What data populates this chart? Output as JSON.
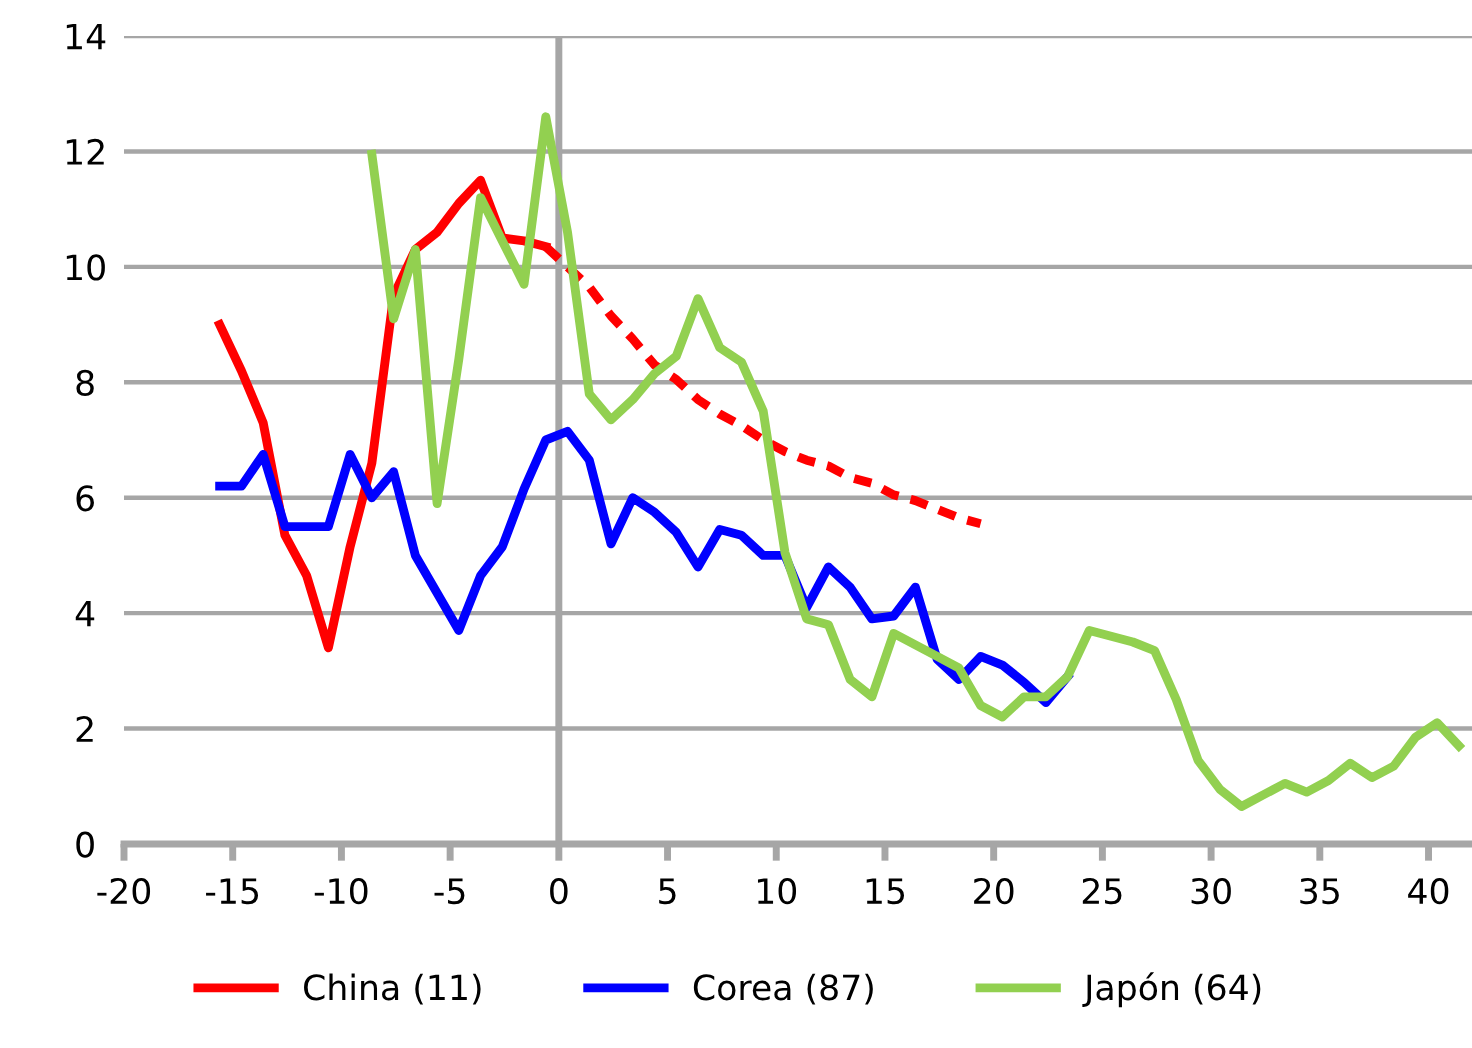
{
  "chart_data": {
    "type": "line",
    "xlim": [
      -20,
      42
    ],
    "ylim": [
      0,
      14
    ],
    "xticks": [
      -20,
      -15,
      -10,
      -5,
      0,
      5,
      10,
      15,
      20,
      25,
      30,
      35,
      40
    ],
    "yticks": [
      0,
      2,
      4,
      6,
      8,
      10,
      12,
      14
    ],
    "grid": "y",
    "legend": "bottom",
    "line_style": "solid",
    "marker": "none",
    "ref_lines": [
      {
        "axis": "x",
        "value": 0,
        "color": "#a6a6a6"
      }
    ],
    "series": [
      {
        "name": "China (11)",
        "color": "#ff0000",
        "x": [
          -15.6,
          -14.6,
          -13.6,
          -12.6,
          -11.6,
          -10.6,
          -9.6,
          -8.6,
          -7.6,
          -6.6,
          -5.6,
          -4.6,
          -3.6,
          -2.6,
          -1.6,
          -0.6
        ],
        "values": [
          9.0,
          8.2,
          7.3,
          5.35,
          4.65,
          3.4,
          5.15,
          6.6,
          9.5,
          10.3,
          10.6,
          11.1,
          11.5,
          10.5,
          10.45,
          10.35
        ]
      },
      {
        "color": "#ff0000",
        "line_style": "dashed",
        "x": [
          -0.6,
          0.4,
          1.4,
          2.4,
          3.4,
          4.4,
          5.4,
          6.4,
          7.4,
          8.4,
          9.4,
          10.4,
          11.4,
          12.4,
          13.4,
          14.4,
          15.4,
          16.4,
          17.4,
          18.4,
          19.4
        ],
        "values": [
          10.35,
          10.0,
          9.65,
          9.15,
          8.75,
          8.3,
          8.05,
          7.7,
          7.45,
          7.25,
          7.0,
          6.8,
          6.65,
          6.55,
          6.35,
          6.25,
          6.05,
          5.95,
          5.8,
          5.65,
          5.55
        ]
      },
      {
        "name": "Corea (87)",
        "color": "#0000ff",
        "x": [
          -15.6,
          -14.6,
          -13.6,
          -12.6,
          -11.6,
          -10.6,
          -9.6,
          -8.6,
          -7.6,
          -6.6,
          -5.6,
          -4.6,
          -3.6,
          -2.6,
          -1.6,
          -0.6,
          0.4,
          1.4,
          2.4,
          3.4,
          4.4,
          5.4,
          6.4,
          7.4,
          8.4,
          9.4,
          10.4,
          11.4,
          12.4,
          13.4,
          14.4,
          15.4,
          16.4,
          17.4,
          18.4,
          19.4,
          20.4,
          21.4,
          22.4,
          23.4
        ],
        "values": [
          6.2,
          6.2,
          6.75,
          5.5,
          5.5,
          5.5,
          6.75,
          6.0,
          6.45,
          5.0,
          4.35,
          3.7,
          4.65,
          5.15,
          6.15,
          7.0,
          7.15,
          6.65,
          5.2,
          6.0,
          5.75,
          5.4,
          4.8,
          5.45,
          5.35,
          5.0,
          5.0,
          4.1,
          4.8,
          4.45,
          3.9,
          3.95,
          4.45,
          3.2,
          2.85,
          3.25,
          3.1,
          2.8,
          2.45,
          2.9
        ]
      },
      {
        "name": "Japón (64)",
        "color": "#92d050",
        "x": [
          -8.6,
          -7.6,
          -6.6,
          -5.6,
          -4.6,
          -3.6,
          -2.6,
          -1.6,
          -0.6,
          0.4,
          1.4,
          2.4,
          3.4,
          4.4,
          5.4,
          6.4,
          7.4,
          8.4,
          9.4,
          10.4,
          11.4,
          12.4,
          13.4,
          14.4,
          15.4,
          16.4,
          17.4,
          18.4,
          19.4,
          20.4,
          21.4,
          22.4,
          23.4,
          24.4,
          25.4,
          26.4,
          27.4,
          28.4,
          29.4,
          30.4,
          31.4,
          32.4,
          33.4,
          34.4,
          35.4,
          36.4,
          37.4,
          38.4,
          39.4,
          40.4,
          41.4
        ],
        "values": [
          11.95,
          9.1,
          10.3,
          5.9,
          8.4,
          11.2,
          10.45,
          9.7,
          12.6,
          10.6,
          7.8,
          7.35,
          7.7,
          8.15,
          8.45,
          9.45,
          8.6,
          8.35,
          7.5,
          5.05,
          3.9,
          3.8,
          2.85,
          2.55,
          3.65,
          3.45,
          3.25,
          3.05,
          2.4,
          2.2,
          2.55,
          2.55,
          2.9,
          3.7,
          3.6,
          3.5,
          3.35,
          2.5,
          1.45,
          0.95,
          0.65,
          0.85,
          1.05,
          0.9,
          1.1,
          1.4,
          1.15,
          1.35,
          1.85,
          2.1,
          1.7
        ]
      }
    ]
  }
}
